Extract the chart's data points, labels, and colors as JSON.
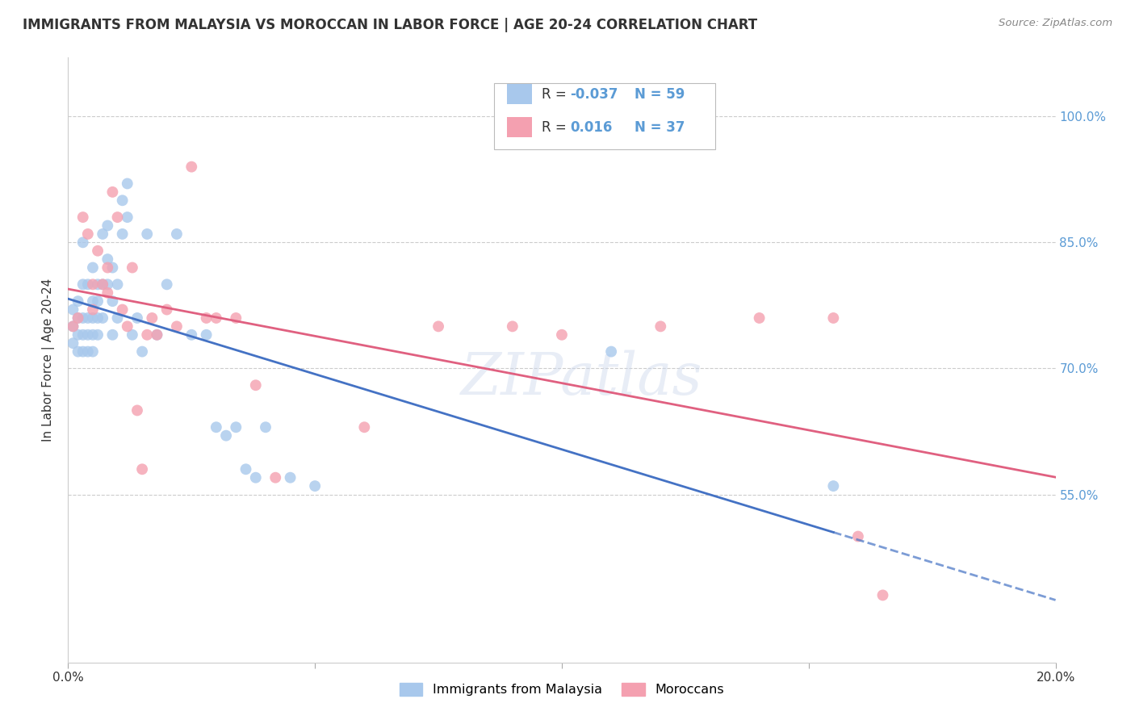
{
  "title": "IMMIGRANTS FROM MALAYSIA VS MOROCCAN IN LABOR FORCE | AGE 20-24 CORRELATION CHART",
  "source": "Source: ZipAtlas.com",
  "ylabel": "In Labor Force | Age 20-24",
  "xlim": [
    0.0,
    0.2
  ],
  "ylim": [
    0.35,
    1.07
  ],
  "yticks": [
    0.55,
    0.7,
    0.85,
    1.0
  ],
  "ytick_labels": [
    "55.0%",
    "70.0%",
    "85.0%",
    "100.0%"
  ],
  "malaysia_color": "#A8C8EC",
  "morocco_color": "#F4A0B0",
  "malaysia_line_color": "#4472C4",
  "morocco_line_color": "#E06080",
  "watermark": "ZIPatlas",
  "malaysia_x": [
    0.001,
    0.001,
    0.001,
    0.002,
    0.002,
    0.002,
    0.002,
    0.003,
    0.003,
    0.003,
    0.003,
    0.003,
    0.004,
    0.004,
    0.004,
    0.004,
    0.005,
    0.005,
    0.005,
    0.005,
    0.005,
    0.006,
    0.006,
    0.006,
    0.006,
    0.007,
    0.007,
    0.007,
    0.008,
    0.008,
    0.008,
    0.009,
    0.009,
    0.009,
    0.01,
    0.01,
    0.011,
    0.011,
    0.012,
    0.012,
    0.013,
    0.014,
    0.015,
    0.016,
    0.018,
    0.02,
    0.022,
    0.025,
    0.028,
    0.03,
    0.032,
    0.034,
    0.036,
    0.038,
    0.04,
    0.045,
    0.05,
    0.11,
    0.155
  ],
  "malaysia_y": [
    0.73,
    0.75,
    0.77,
    0.72,
    0.74,
    0.76,
    0.78,
    0.72,
    0.74,
    0.76,
    0.8,
    0.85,
    0.72,
    0.74,
    0.76,
    0.8,
    0.72,
    0.74,
    0.76,
    0.78,
    0.82,
    0.74,
    0.76,
    0.78,
    0.8,
    0.76,
    0.8,
    0.86,
    0.8,
    0.83,
    0.87,
    0.74,
    0.78,
    0.82,
    0.76,
    0.8,
    0.86,
    0.9,
    0.88,
    0.92,
    0.74,
    0.76,
    0.72,
    0.86,
    0.74,
    0.8,
    0.86,
    0.74,
    0.74,
    0.63,
    0.62,
    0.63,
    0.58,
    0.57,
    0.63,
    0.57,
    0.56,
    0.72,
    0.56
  ],
  "morocco_x": [
    0.001,
    0.002,
    0.003,
    0.004,
    0.005,
    0.005,
    0.006,
    0.007,
    0.008,
    0.008,
    0.009,
    0.01,
    0.011,
    0.012,
    0.013,
    0.014,
    0.015,
    0.016,
    0.017,
    0.018,
    0.02,
    0.022,
    0.025,
    0.028,
    0.03,
    0.034,
    0.038,
    0.042,
    0.06,
    0.075,
    0.09,
    0.1,
    0.12,
    0.14,
    0.155,
    0.16,
    0.165
  ],
  "morocco_y": [
    0.75,
    0.76,
    0.88,
    0.86,
    0.8,
    0.77,
    0.84,
    0.8,
    0.82,
    0.79,
    0.91,
    0.88,
    0.77,
    0.75,
    0.82,
    0.65,
    0.58,
    0.74,
    0.76,
    0.74,
    0.77,
    0.75,
    0.94,
    0.76,
    0.76,
    0.76,
    0.68,
    0.57,
    0.63,
    0.75,
    0.75,
    0.74,
    0.75,
    0.76,
    0.76,
    0.5,
    0.43
  ]
}
